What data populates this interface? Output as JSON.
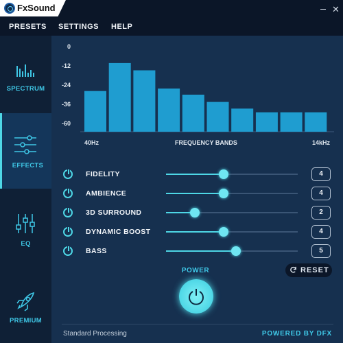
{
  "app": {
    "name": "FxSound"
  },
  "window": {
    "minimize_icon": "minimize-icon",
    "close_glyph": "✕"
  },
  "menu": {
    "presets": "PRESETS",
    "settings": "SETTINGS",
    "help": "HELP"
  },
  "sidebar": {
    "spectrum": "SPECTRUM",
    "effects": "EFFECTS",
    "eq": "EQ",
    "premium": "PREMIUM"
  },
  "chart_data": {
    "type": "bar",
    "ticks": [
      "0",
      "-12",
      "-24",
      "-36",
      "-60"
    ],
    "ylim": [
      -70,
      0
    ],
    "values": [
      -36.5,
      -13.5,
      -19.5,
      -34.5,
      -39.5,
      -45.5,
      -51,
      -54,
      -54,
      -54
    ],
    "xlabel": "FREQUENCY BANDS",
    "x_start": "40Hz",
    "x_end": "14kHz",
    "bar_color": "#1f9dd0"
  },
  "effects": [
    {
      "label": "FIDELITY",
      "value": "4",
      "level": 0.44
    },
    {
      "label": "AMBIENCE",
      "value": "4",
      "level": 0.44
    },
    {
      "label": "3D SURROUND",
      "value": "2",
      "level": 0.22
    },
    {
      "label": "DYNAMIC BOOST",
      "value": "4",
      "level": 0.44
    },
    {
      "label": "BASS",
      "value": "5",
      "level": 0.53
    }
  ],
  "controls": {
    "reset": "RESET",
    "power": "POWER"
  },
  "footer": {
    "status": "Standard Processing",
    "powered": "POWERED BY DFX"
  },
  "colors": {
    "accent": "#4ed7e6",
    "background": "#16304f",
    "sidebar": "#0f2036"
  }
}
